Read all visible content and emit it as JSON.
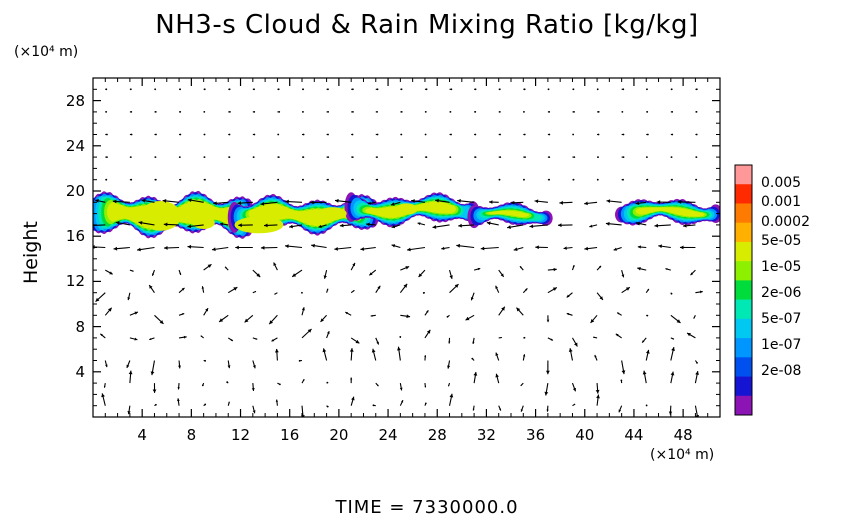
{
  "chart_data": {
    "type": "heatmap",
    "title": "NH3-s Cloud & Rain Mixing Ratio [kg/kg]",
    "ylabel": "Height",
    "x_unit": "(×10⁴ m)",
    "y_unit": "(×10⁴ m)",
    "footer": "TIME  =  7330000.0",
    "xlim": [
      0,
      51
    ],
    "ylim": [
      0,
      30
    ],
    "x_ticks": [
      4,
      8,
      12,
      16,
      20,
      24,
      28,
      32,
      36,
      40,
      44,
      48
    ],
    "y_ticks": [
      4,
      8,
      12,
      16,
      20,
      24,
      28
    ],
    "x_tick_labels": [
      "4",
      "8",
      "12",
      "16",
      "20",
      "24",
      "28",
      "32",
      "36",
      "40",
      "44",
      "48"
    ],
    "y_tick_labels": [
      "4",
      "8",
      "12",
      "16",
      "20",
      "24",
      "28"
    ],
    "colorbar": {
      "labels": [
        "0.005",
        "0.001",
        "0.0002",
        "5e-05",
        "1e-05",
        "2e-06",
        "5e-07",
        "1e-07",
        "2e-08"
      ],
      "colors": [
        "#ff9999",
        "#ff2a00",
        "#ff7a00",
        "#ffb000",
        "#d8ec00",
        "#8cf000",
        "#00dc3c",
        "#00e8b4",
        "#00c8f0",
        "#0096ff",
        "#0050f0",
        "#1414d2",
        "#8c14b4"
      ]
    },
    "cloud_regions": [
      {
        "x0": 0.0,
        "x1": 13.0,
        "y0": 16.0,
        "y1": 19.8
      },
      {
        "x0": 11.5,
        "x1": 23.0,
        "y0": 16.3,
        "y1": 19.5
      },
      {
        "x0": 21.0,
        "x1": 31.0,
        "y0": 17.0,
        "y1": 19.7
      },
      {
        "x0": 31.0,
        "x1": 37.0,
        "y0": 16.8,
        "y1": 18.9
      },
      {
        "x0": 43.0,
        "x1": 51.0,
        "y0": 17.0,
        "y1": 19.3
      }
    ],
    "cloud_cores": [
      {
        "x": 5.5,
        "y": 17.8,
        "rx": 1.4,
        "ry": 1.1,
        "level": 3
      },
      {
        "x": 13.5,
        "y": 17.0,
        "rx": 1.6,
        "ry": 0.6,
        "level": 2
      },
      {
        "x": 9.0,
        "y": 17.2,
        "rx": 0.8,
        "ry": 0.5,
        "level": 4
      },
      {
        "x": 19.5,
        "y": 18.0,
        "rx": 1.0,
        "ry": 0.5,
        "level": 4
      },
      {
        "x": 25.5,
        "y": 18.4,
        "rx": 0.9,
        "ry": 0.5,
        "level": 5
      }
    ],
    "wind_vectors": {
      "grid_dx": 2.0,
      "grid_dy": 2.0,
      "x_start": 1.0,
      "y_start": 1.0,
      "bands": [
        {
          "y0": 0.0,
          "y1": 6.0,
          "mode": "vertical"
        },
        {
          "y0": 6.0,
          "y1": 14.0,
          "mode": "mixed"
        },
        {
          "y0": 14.0,
          "y1": 20.0,
          "mode": "horizontal"
        },
        {
          "y0": 20.0,
          "y1": 30.0,
          "mode": "calm"
        }
      ]
    }
  }
}
